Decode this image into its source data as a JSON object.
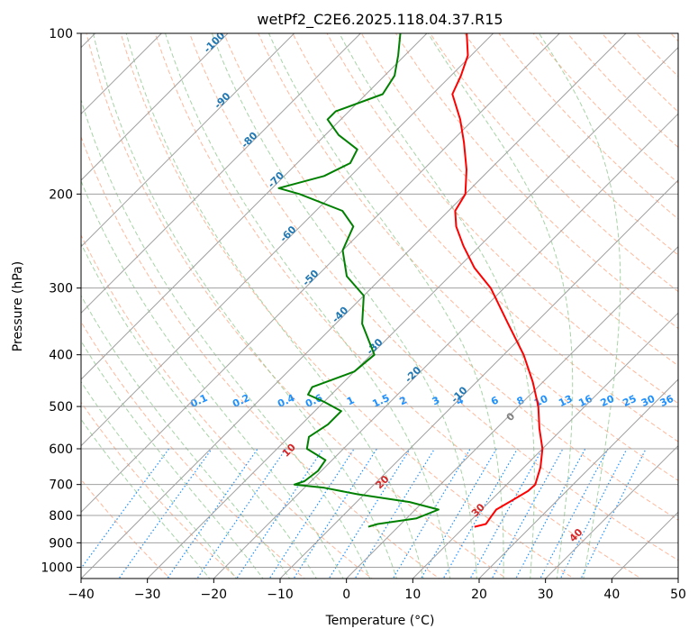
{
  "chart_data": {
    "type": "line",
    "title": "wetPf2_C2E6.2025.118.04.37.R15",
    "xlabel": "Temperature (°C)",
    "ylabel": "Pressure (hPa)",
    "xlim": [
      -40,
      50
    ],
    "ylim": [
      1050,
      100
    ],
    "y_scale": "log",
    "grid": true,
    "x_ticks": [
      -40,
      -30,
      -20,
      -10,
      0,
      10,
      20,
      30,
      40,
      50
    ],
    "y_ticks": [
      100,
      200,
      300,
      400,
      500,
      600,
      700,
      800,
      900,
      1000
    ],
    "skew_isotherm_labels": [
      "-100",
      "-90",
      "-80",
      "-70",
      "-60",
      "-50",
      "-40",
      "-30",
      "-20",
      "-10"
    ],
    "mixing_ratio_labels": [
      "0.1",
      "0.2",
      "0.4",
      "0.6",
      "1",
      "1.5",
      "2",
      "3",
      "4",
      "6",
      "8",
      "10",
      "13",
      "16",
      "20",
      "25",
      "30",
      "36"
    ],
    "dry_adiabat_labels": [
      "0",
      "10",
      "20",
      "30",
      "40"
    ],
    "colors": {
      "temperature": "#ff0000",
      "dewpoint": "#008000",
      "isotherm": "#a0a0a0",
      "dry_adiabat": "#ffa07a",
      "moist_adiabat": "#90c890",
      "mixing_ratio": "#1e90ff",
      "isotherm_label": "#1f77b4",
      "adiabat_label": "#d62728",
      "zero_label": "#808080"
    },
    "series": [
      {
        "id": "temperature",
        "points": [
          {
            "p": 840,
            "t": 11.5
          },
          {
            "p": 830,
            "t": 12.8
          },
          {
            "p": 805,
            "t": 12.5
          },
          {
            "p": 780,
            "t": 12.2
          },
          {
            "p": 750,
            "t": 13.2
          },
          {
            "p": 720,
            "t": 14.2
          },
          {
            "p": 700,
            "t": 14.3
          },
          {
            "p": 650,
            "t": 12.5
          },
          {
            "p": 600,
            "t": 10.0
          },
          {
            "p": 550,
            "t": 6.5
          },
          {
            "p": 500,
            "t": 3.0
          },
          {
            "p": 450,
            "t": -1.5
          },
          {
            "p": 400,
            "t": -7.0
          },
          {
            "p": 350,
            "t": -14.0
          },
          {
            "p": 300,
            "t": -22.0
          },
          {
            "p": 275,
            "t": -27.5
          },
          {
            "p": 250,
            "t": -32.5
          },
          {
            "p": 230,
            "t": -36.5
          },
          {
            "p": 215,
            "t": -39.0
          },
          {
            "p": 200,
            "t": -40.0
          },
          {
            "p": 180,
            "t": -43.5
          },
          {
            "p": 160,
            "t": -48.0
          },
          {
            "p": 145,
            "t": -52.0
          },
          {
            "p": 130,
            "t": -57.0
          },
          {
            "p": 120,
            "t": -58.5
          },
          {
            "p": 110,
            "t": -60.5
          },
          {
            "p": 100,
            "t": -64.0
          }
        ]
      },
      {
        "id": "dewpoint",
        "points": [
          {
            "p": 840,
            "t": -4.5
          },
          {
            "p": 830,
            "t": -3.5
          },
          {
            "p": 810,
            "t": 1.5
          },
          {
            "p": 780,
            "t": 3.5
          },
          {
            "p": 755,
            "t": -2.0
          },
          {
            "p": 730,
            "t": -11.0
          },
          {
            "p": 710,
            "t": -17.0
          },
          {
            "p": 700,
            "t": -22.0
          },
          {
            "p": 690,
            "t": -21.0
          },
          {
            "p": 660,
            "t": -20.5
          },
          {
            "p": 630,
            "t": -21.0
          },
          {
            "p": 600,
            "t": -25.5
          },
          {
            "p": 570,
            "t": -27.0
          },
          {
            "p": 540,
            "t": -26.0
          },
          {
            "p": 510,
            "t": -26.0
          },
          {
            "p": 490,
            "t": -30.0
          },
          {
            "p": 475,
            "t": -33.5
          },
          {
            "p": 460,
            "t": -34.0
          },
          {
            "p": 430,
            "t": -30.0
          },
          {
            "p": 400,
            "t": -29.5
          },
          {
            "p": 350,
            "t": -36.0
          },
          {
            "p": 310,
            "t": -40.0
          },
          {
            "p": 285,
            "t": -45.5
          },
          {
            "p": 255,
            "t": -50.0
          },
          {
            "p": 230,
            "t": -52.0
          },
          {
            "p": 215,
            "t": -56.0
          },
          {
            "p": 200,
            "t": -65.0
          },
          {
            "p": 195,
            "t": -69.0
          },
          {
            "p": 185,
            "t": -64.0
          },
          {
            "p": 175,
            "t": -62.0
          },
          {
            "p": 165,
            "t": -63.0
          },
          {
            "p": 155,
            "t": -68.0
          },
          {
            "p": 145,
            "t": -72.0
          },
          {
            "p": 140,
            "t": -72.0
          },
          {
            "p": 130,
            "t": -67.5
          },
          {
            "p": 120,
            "t": -68.5
          },
          {
            "p": 110,
            "t": -71.0
          },
          {
            "p": 100,
            "t": -74.0
          }
        ]
      }
    ]
  }
}
